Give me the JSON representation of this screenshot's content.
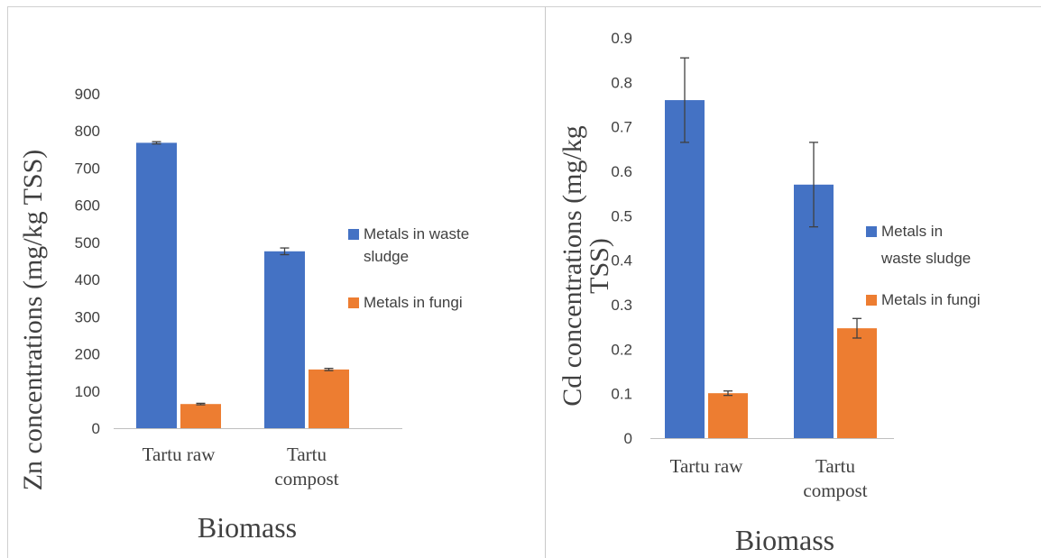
{
  "colors": {
    "waste_sludge": "#4472C4",
    "fungi": "#ED7D31",
    "axis": "#bfbfbf",
    "error_bar": "#404040"
  },
  "chart_data": [
    {
      "type": "bar",
      "categories": [
        "Tartu raw",
        "Tartu compost"
      ],
      "category_lines": [
        [
          "Tartu raw"
        ],
        [
          "Tartu",
          "compost"
        ]
      ],
      "series": [
        {
          "name": "Metals in waste sludge",
          "legend_lines": [
            "Metals in waste",
            "sludge"
          ],
          "values": [
            768,
            476
          ],
          "errors": [
            3,
            9
          ]
        },
        {
          "name": "Metals in fungi",
          "legend_lines": [
            "Metals in fungi"
          ],
          "values": [
            65,
            158
          ],
          "errors": [
            2,
            3
          ]
        }
      ],
      "xlabel": "Biomass",
      "ylabel": "Zn concentrations (mg/kg TSS)",
      "ylabel_lines": [
        "Zn concentrations (mg/kg TSS)"
      ],
      "ylim": [
        0,
        900
      ],
      "yticks": [
        "0",
        "100",
        "200",
        "300",
        "400",
        "500",
        "600",
        "700",
        "800",
        "900"
      ],
      "grid": false,
      "legend_position": "right"
    },
    {
      "type": "bar",
      "categories": [
        "Tartu raw",
        "Tartu compost"
      ],
      "category_lines": [
        [
          "Tartu raw"
        ],
        [
          "Tartu",
          "compost"
        ]
      ],
      "series": [
        {
          "name": "Metals in waste sludge",
          "legend_lines": [
            "Metals in",
            "waste sludge"
          ],
          "values": [
            0.76,
            0.57
          ],
          "errors": [
            0.095,
            0.095
          ]
        },
        {
          "name": "Metals in fungi",
          "legend_lines": [
            "Metals in fungi"
          ],
          "values": [
            0.101,
            0.247
          ],
          "errors": [
            0.005,
            0.022
          ]
        }
      ],
      "xlabel": "Biomass",
      "ylabel": "Cd concentrations (mg/kg TSS)",
      "ylabel_lines": [
        "Cd  concentrations (mg/kg",
        "TSS)"
      ],
      "ylim": [
        0,
        0.9
      ],
      "yticks": [
        "0",
        "0.1",
        "0.2",
        "0.3",
        "0.4",
        "0.5",
        "0.6",
        "0.7",
        "0.8",
        "0.9"
      ],
      "grid": false,
      "legend_position": "right"
    }
  ]
}
